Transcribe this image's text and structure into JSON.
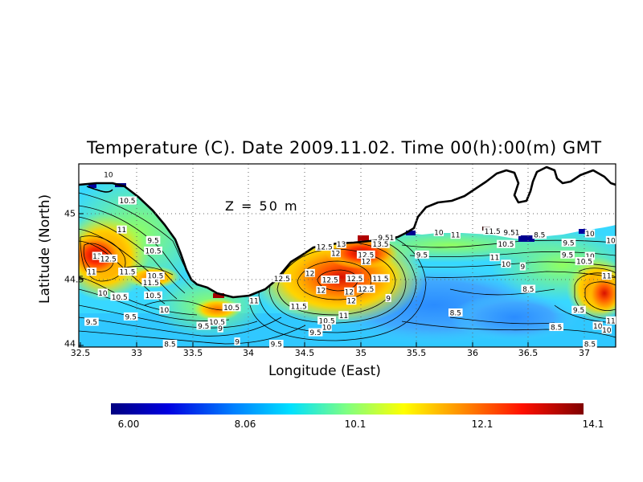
{
  "title": "Temperature (C). Date 2009.11.02. Time 00(h):00(m) GMT",
  "xlabel": "Longitude (East)",
  "ylabel": "Latitude (North)",
  "depth_label": "Z = 50 m",
  "x_ticks": [
    "32.5",
    "33",
    "33.5",
    "34",
    "34.5",
    "35",
    "35.5",
    "36",
    "36.5",
    "37"
  ],
  "y_ticks": [
    "44",
    "44.5",
    "45"
  ],
  "colorbar": {
    "ticks": [
      "6.00",
      "8.06",
      "10.1",
      "12.1",
      "14.1"
    ],
    "min": 6.0,
    "max": 14.1
  },
  "map": {
    "lon_range": [
      32.5,
      37.3
    ],
    "lat_range": [
      44.0,
      45.35
    ],
    "land_color": "#ffffff",
    "coastline_color": "#000000"
  },
  "contour_labels": [
    {
      "text": "10",
      "lon": 32.75,
      "lat": 45.3
    },
    {
      "text": "10.5",
      "lon": 32.92,
      "lat": 45.1
    },
    {
      "text": "11",
      "lon": 32.87,
      "lat": 44.88
    },
    {
      "text": "9.5",
      "lon": 33.15,
      "lat": 44.8
    },
    {
      "text": "10.5",
      "lon": 33.15,
      "lat": 44.72
    },
    {
      "text": "13",
      "lon": 32.65,
      "lat": 44.68
    },
    {
      "text": "12.5",
      "lon": 32.75,
      "lat": 44.66
    },
    {
      "text": "11",
      "lon": 32.6,
      "lat": 44.56
    },
    {
      "text": "11.5",
      "lon": 32.92,
      "lat": 44.56
    },
    {
      "text": "10.5",
      "lon": 33.17,
      "lat": 44.53
    },
    {
      "text": "11.5",
      "lon": 33.13,
      "lat": 44.48
    },
    {
      "text": "10",
      "lon": 32.7,
      "lat": 44.4
    },
    {
      "text": "10.5",
      "lon": 32.85,
      "lat": 44.37
    },
    {
      "text": "10.5",
      "lon": 33.15,
      "lat": 44.38
    },
    {
      "text": "10",
      "lon": 33.25,
      "lat": 44.27
    },
    {
      "text": "9.5",
      "lon": 32.95,
      "lat": 44.22
    },
    {
      "text": "9.5",
      "lon": 32.6,
      "lat": 44.18
    },
    {
      "text": "10.5",
      "lon": 33.85,
      "lat": 44.29
    },
    {
      "text": "11",
      "lon": 34.05,
      "lat": 44.34
    },
    {
      "text": "10.5",
      "lon": 33.72,
      "lat": 44.18
    },
    {
      "text": "9.5",
      "lon": 33.6,
      "lat": 44.15
    },
    {
      "text": "9",
      "lon": 33.75,
      "lat": 44.13
    },
    {
      "text": "9",
      "lon": 33.9,
      "lat": 44.03
    },
    {
      "text": "8.5",
      "lon": 33.3,
      "lat": 44.0
    },
    {
      "text": "12.5",
      "lon": 34.3,
      "lat": 44.51
    },
    {
      "text": "12",
      "lon": 34.55,
      "lat": 44.55
    },
    {
      "text": "12.5",
      "lon": 34.73,
      "lat": 44.5
    },
    {
      "text": "12",
      "lon": 34.65,
      "lat": 44.42
    },
    {
      "text": "11.5",
      "lon": 34.45,
      "lat": 44.3
    },
    {
      "text": "11",
      "lon": 34.85,
      "lat": 44.23
    },
    {
      "text": "10.5",
      "lon": 34.7,
      "lat": 44.19
    },
    {
      "text": "10",
      "lon": 34.7,
      "lat": 44.14
    },
    {
      "text": "9.5",
      "lon": 34.6,
      "lat": 44.1
    },
    {
      "text": "9.5",
      "lon": 34.25,
      "lat": 44.0
    },
    {
      "text": "12.5",
      "lon": 34.68,
      "lat": 44.75
    },
    {
      "text": "13",
      "lon": 34.83,
      "lat": 44.77
    },
    {
      "text": "12",
      "lon": 34.78,
      "lat": 44.7
    },
    {
      "text": "12.5",
      "lon": 35.05,
      "lat": 44.69
    },
    {
      "text": "13.5",
      "lon": 35.18,
      "lat": 44.77
    },
    {
      "text": "12",
      "lon": 35.05,
      "lat": 44.64
    },
    {
      "text": "12.5",
      "lon": 34.95,
      "lat": 44.51
    },
    {
      "text": "11.5",
      "lon": 35.18,
      "lat": 44.51
    },
    {
      "text": "12",
      "lon": 34.9,
      "lat": 44.41
    },
    {
      "text": "12.5",
      "lon": 35.05,
      "lat": 44.43
    },
    {
      "text": "12",
      "lon": 34.92,
      "lat": 44.34
    },
    {
      "text": "9",
      "lon": 35.25,
      "lat": 44.36
    },
    {
      "text": "9.51",
      "lon": 35.23,
      "lat": 44.82
    },
    {
      "text": "9.5",
      "lon": 35.55,
      "lat": 44.69
    },
    {
      "text": "10",
      "lon": 35.7,
      "lat": 44.86
    },
    {
      "text": "11",
      "lon": 35.85,
      "lat": 44.84
    },
    {
      "text": "11.5",
      "lon": 36.18,
      "lat": 44.87
    },
    {
      "text": "9.51",
      "lon": 36.35,
      "lat": 44.86
    },
    {
      "text": "10.5",
      "lon": 36.3,
      "lat": 44.77
    },
    {
      "text": "11",
      "lon": 36.2,
      "lat": 44.67
    },
    {
      "text": "10",
      "lon": 36.3,
      "lat": 44.62
    },
    {
      "text": "9",
      "lon": 36.45,
      "lat": 44.6
    },
    {
      "text": "8.5",
      "lon": 36.6,
      "lat": 44.84
    },
    {
      "text": "9.5",
      "lon": 36.86,
      "lat": 44.78
    },
    {
      "text": "10",
      "lon": 37.05,
      "lat": 44.85
    },
    {
      "text": "10",
      "lon": 37.25,
      "lat": 44.8
    },
    {
      "text": "9.5",
      "lon": 36.85,
      "lat": 44.69
    },
    {
      "text": "10",
      "lon": 37.05,
      "lat": 44.68
    },
    {
      "text": "10.5",
      "lon": 37.0,
      "lat": 44.64
    },
    {
      "text": "11",
      "lon": 37.2,
      "lat": 44.53
    },
    {
      "text": "8.5",
      "lon": 36.5,
      "lat": 44.43
    },
    {
      "text": "8.5",
      "lon": 35.85,
      "lat": 44.25
    },
    {
      "text": "8.5",
      "lon": 36.75,
      "lat": 44.14
    },
    {
      "text": "9.5",
      "lon": 36.95,
      "lat": 44.27
    },
    {
      "text": "10",
      "lon": 37.12,
      "lat": 44.15
    },
    {
      "text": "10",
      "lon": 37.2,
      "lat": 44.12
    },
    {
      "text": "11",
      "lon": 37.28,
      "lat": 44.19
    },
    {
      "text": "8.5",
      "lon": 37.05,
      "lat": 44.0
    }
  ]
}
